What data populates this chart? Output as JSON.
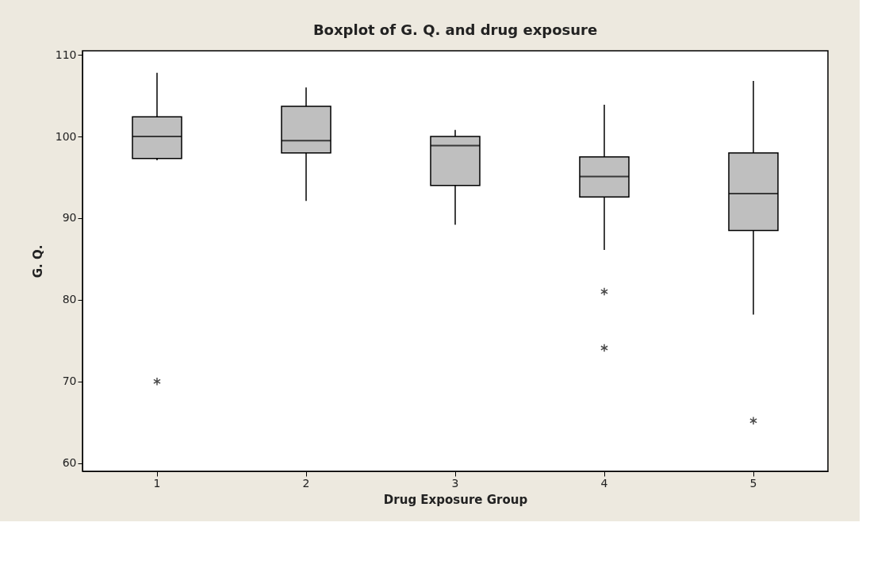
{
  "chart_data": {
    "type": "box",
    "title": "Boxplot of G. Q. and drug exposure",
    "xlabel": "Drug Exposure Group",
    "ylabel": "G. Q.",
    "categories": [
      "1",
      "2",
      "3",
      "4",
      "5"
    ],
    "boxes": [
      {
        "low": 97.1,
        "q1": 97.3,
        "median": 100.0,
        "q3": 102.4,
        "high": 107.8,
        "outliers": [
          70.0
        ]
      },
      {
        "low": 92.1,
        "q1": 98.0,
        "median": 99.5,
        "q3": 103.7,
        "high": 106.0
      },
      {
        "low": 89.2,
        "q1": 94.0,
        "median": 98.9,
        "q3": 100.0,
        "high": 100.8
      },
      {
        "low": 86.1,
        "q1": 92.6,
        "median": 95.1,
        "q3": 97.5,
        "high": 103.9,
        "outliers": [
          81.0,
          74.1
        ]
      },
      {
        "low": 78.2,
        "q1": 88.5,
        "median": 93.0,
        "q3": 98.0,
        "high": 106.8,
        "outliers": [
          65.2
        ]
      }
    ],
    "color": "#bfbfbf",
    "marker": "star",
    "ylim": [
      59,
      110.5
    ],
    "yticks": [
      60,
      70,
      80,
      90,
      100,
      110
    ],
    "grid": false
  }
}
